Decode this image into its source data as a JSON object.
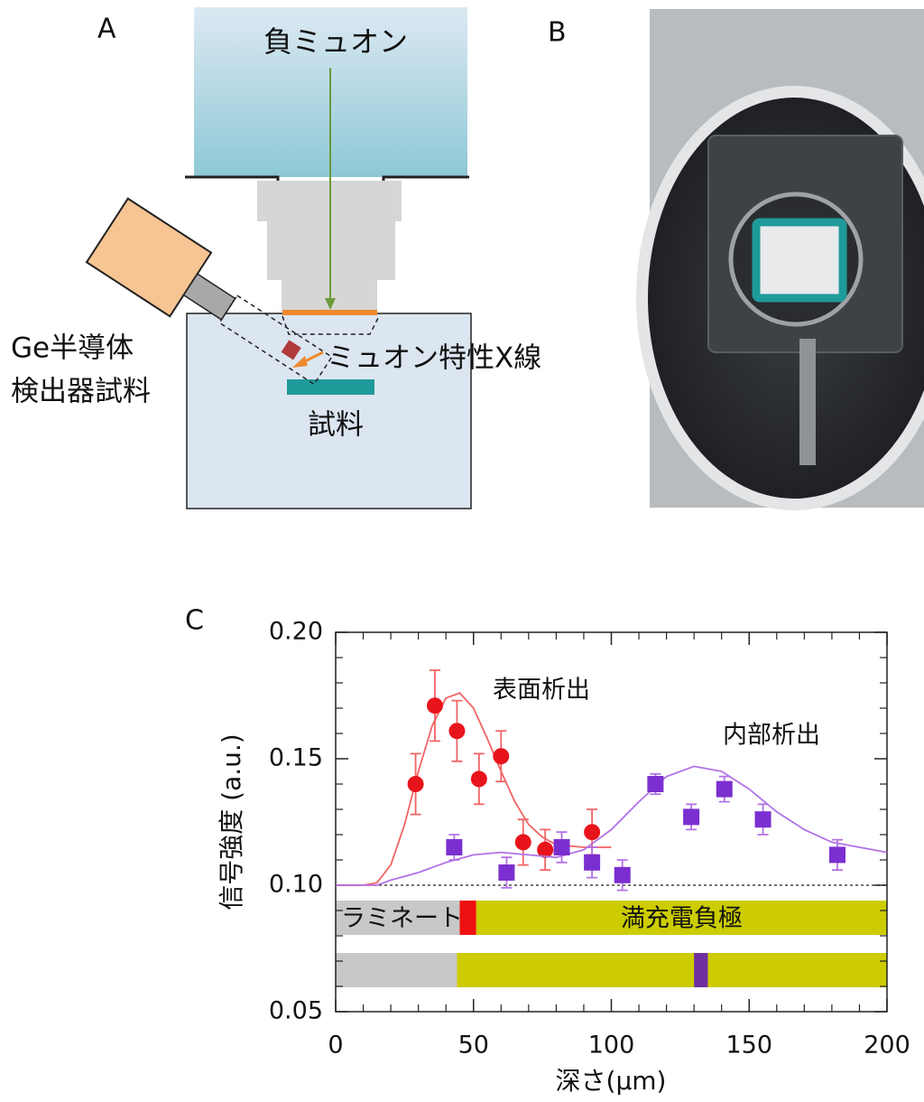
{
  "panel_a": {
    "label": "A",
    "beam": "負ミュオン",
    "detector": [
      "Ge半導体",
      "検出器試料"
    ],
    "xray": "ミュオン特性X線",
    "sample": "試料"
  },
  "panel_b": {
    "label": "B"
  },
  "chart_data": {
    "type": "scatter",
    "panel_label": "C",
    "xlabel": "深さ(μm)",
    "ylabel": "信号強度 (a.u.)",
    "xlim": [
      0,
      200
    ],
    "ylim": [
      0.05,
      0.2
    ],
    "xticks": [
      0,
      50,
      100,
      150,
      200
    ],
    "yticks": [
      0.05,
      {
        "value": 0.1,
        "label": "0.10"
      },
      0.15,
      {
        "value": 0.2,
        "label": "0.20"
      }
    ],
    "x_minor_ticks": [
      10,
      20,
      30,
      40,
      60,
      70,
      80,
      90,
      110,
      120,
      130,
      140,
      160,
      170,
      180,
      190
    ],
    "y_minor_ticks": [
      0.06,
      0.07,
      0.08,
      0.09,
      0.11,
      0.12,
      0.13,
      0.14,
      0.16,
      0.17,
      0.18,
      0.19
    ],
    "reference_line": 0.1,
    "series": [
      {
        "name": "表面析出",
        "color": "#e8141c",
        "fit_color": "#f26464",
        "marker": "circle",
        "x": [
          29,
          36,
          44,
          52,
          60,
          68,
          76,
          93
        ],
        "values": [
          0.14,
          0.171,
          0.161,
          0.142,
          0.151,
          0.117,
          0.114,
          0.121
        ],
        "errors": [
          0.012,
          0.014,
          0.012,
          0.01,
          0.01,
          0.009,
          0.008,
          0.009
        ],
        "fit": {
          "x": [
            0,
            10,
            15,
            20,
            25,
            30,
            35,
            40,
            45,
            50,
            55,
            60,
            65,
            70,
            75,
            80,
            90,
            100
          ],
          "values": [
            0.1,
            0.1,
            0.101,
            0.108,
            0.124,
            0.145,
            0.163,
            0.174,
            0.176,
            0.17,
            0.158,
            0.145,
            0.133,
            0.124,
            0.119,
            0.116,
            0.115,
            0.115
          ]
        }
      },
      {
        "name": "内部析出",
        "color": "#7b2fd0",
        "fit_color": "#b272e6",
        "marker": "square",
        "x": [
          43,
          62,
          82,
          93,
          104,
          116,
          129,
          141,
          155,
          182
        ],
        "values": [
          0.115,
          0.105,
          0.115,
          0.109,
          0.104,
          0.14,
          0.127,
          0.138,
          0.126,
          0.112
        ],
        "errors": [
          0.005,
          0.006,
          0.006,
          0.006,
          0.006,
          0.004,
          0.005,
          0.005,
          0.006,
          0.006
        ],
        "fit": {
          "x": [
            0,
            10,
            15,
            20,
            30,
            40,
            50,
            60,
            70,
            80,
            90,
            100,
            110,
            120,
            130,
            140,
            150,
            160,
            170,
            180,
            190,
            200
          ],
          "values": [
            0.1,
            0.1,
            0.1,
            0.102,
            0.105,
            0.109,
            0.112,
            0.113,
            0.112,
            0.111,
            0.114,
            0.122,
            0.133,
            0.143,
            0.147,
            0.145,
            0.138,
            0.129,
            0.122,
            0.117,
            0.115,
            0.113
          ]
        }
      }
    ],
    "layer_bars": [
      [
        {
          "label": "ラミネート",
          "color": "#c8c8c8",
          "range": [
            0,
            45
          ]
        },
        {
          "color": "#ee1111",
          "range": [
            45,
            51
          ]
        },
        {
          "label": "満充電負極",
          "color": "#cccc00",
          "range": [
            51,
            200
          ]
        }
      ],
      [
        {
          "color": "#c8c8c8",
          "range": [
            0,
            44
          ]
        },
        {
          "color": "#cccc00",
          "range": [
            44,
            200
          ]
        },
        {
          "color": "#7030a0",
          "range": [
            130,
            135
          ]
        }
      ]
    ]
  }
}
